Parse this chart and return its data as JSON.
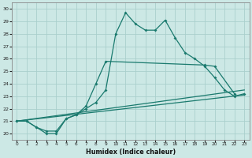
{
  "line1_x": [
    0,
    1,
    2,
    3,
    4,
    5,
    6,
    7,
    8,
    9,
    10,
    11,
    12,
    13,
    14,
    15,
    16,
    17,
    18,
    19,
    20,
    21,
    22,
    23
  ],
  "line1_y": [
    21,
    21,
    20.5,
    20,
    20,
    21.2,
    21.5,
    22.0,
    22.5,
    23.5,
    28.0,
    29.7,
    28.8,
    28.3,
    28.3,
    29.1,
    27.7,
    26.5,
    26.0,
    25.4,
    24.5,
    23.5,
    23.0,
    23.2
  ],
  "line2_x": [
    0,
    1,
    2,
    3,
    4,
    5,
    6,
    7,
    8,
    9,
    19,
    20,
    22
  ],
  "line2_y": [
    21,
    21,
    20.5,
    20.2,
    20.2,
    21.2,
    21.5,
    22.2,
    24.0,
    25.8,
    25.5,
    25.4,
    23.2
  ],
  "line3_x": [
    0,
    23
  ],
  "line3_y": [
    21,
    23.5
  ],
  "line4_x": [
    0,
    23
  ],
  "line4_y": [
    21,
    23.1
  ],
  "color": "#1a7a6e",
  "bg_color": "#cce8e5",
  "grid_color": "#aacfcc",
  "xlabel": "Humidex (Indice chaleur)",
  "xlim": [
    -0.5,
    23.5
  ],
  "ylim": [
    19.5,
    30.5
  ],
  "xticks": [
    0,
    1,
    2,
    3,
    4,
    5,
    6,
    7,
    8,
    9,
    10,
    11,
    12,
    13,
    14,
    15,
    16,
    17,
    18,
    19,
    20,
    21,
    22,
    23
  ],
  "yticks": [
    20,
    21,
    22,
    23,
    24,
    25,
    26,
    27,
    28,
    29,
    30
  ]
}
